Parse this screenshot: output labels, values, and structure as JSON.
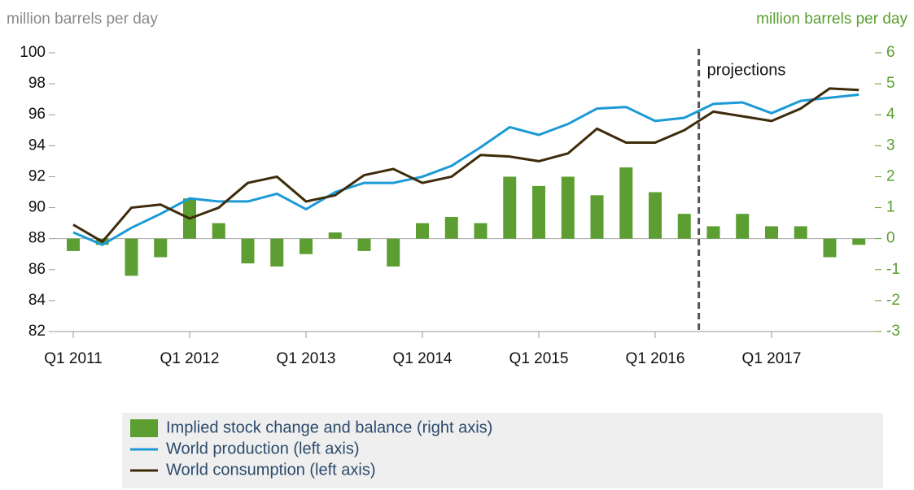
{
  "chart_data": {
    "type": "bar_line",
    "y_label": "million barrels per day",
    "y2_label": "million barrels per day",
    "annotation": "projections",
    "categories": [
      "Q1 2011",
      null,
      null,
      null,
      "Q1 2012",
      null,
      null,
      null,
      "Q1 2013",
      null,
      null,
      null,
      "Q1 2014",
      null,
      null,
      null,
      "Q1 2015",
      null,
      null,
      null,
      "Q1 2016",
      null,
      null,
      null,
      "Q1 2017",
      null,
      null,
      null
    ],
    "series": [
      {
        "name": "Implied stock change and balance (right axis)",
        "type": "bar",
        "axis": "y2",
        "color": "#5c9e31",
        "values": [
          -0.4,
          -0.2,
          -1.2,
          -0.6,
          1.3,
          0.5,
          -0.8,
          -0.9,
          -0.5,
          0.2,
          -0.4,
          -0.9,
          0.5,
          0.7,
          0.5,
          2.0,
          1.7,
          2.0,
          1.4,
          2.3,
          1.5,
          0.8,
          0.4,
          0.8,
          0.4,
          0.4,
          -0.6,
          -0.2
        ]
      },
      {
        "name": "World production (left axis)",
        "type": "line",
        "axis": "y",
        "color": "#1c9ad6",
        "values": [
          88.4,
          87.6,
          88.7,
          89.6,
          90.6,
          90.4,
          90.4,
          90.9,
          89.9,
          91.0,
          91.6,
          91.6,
          92.0,
          92.7,
          93.9,
          95.2,
          94.7,
          95.4,
          96.4,
          96.5,
          95.6,
          95.8,
          96.7,
          96.8,
          96.1,
          96.9,
          97.1,
          97.3
        ]
      },
      {
        "name": "World consumption (left axis)",
        "type": "line",
        "axis": "y",
        "color": "#3d2b0a",
        "values": [
          88.9,
          87.8,
          90.0,
          90.2,
          89.3,
          90.0,
          91.6,
          92.0,
          90.4,
          90.8,
          92.1,
          92.5,
          91.6,
          92.0,
          93.4,
          93.3,
          93.0,
          93.5,
          95.1,
          94.2,
          94.2,
          95.0,
          96.2,
          95.9,
          95.6,
          96.4,
          97.7,
          97.6
        ]
      }
    ],
    "ylim": [
      82,
      100
    ],
    "yticks": [
      82,
      84,
      86,
      88,
      90,
      92,
      94,
      96,
      98,
      100
    ],
    "y2lim": [
      -3,
      6
    ],
    "y2ticks": [
      -3,
      -2,
      -1,
      0,
      1,
      2,
      3,
      4,
      5,
      6
    ]
  }
}
